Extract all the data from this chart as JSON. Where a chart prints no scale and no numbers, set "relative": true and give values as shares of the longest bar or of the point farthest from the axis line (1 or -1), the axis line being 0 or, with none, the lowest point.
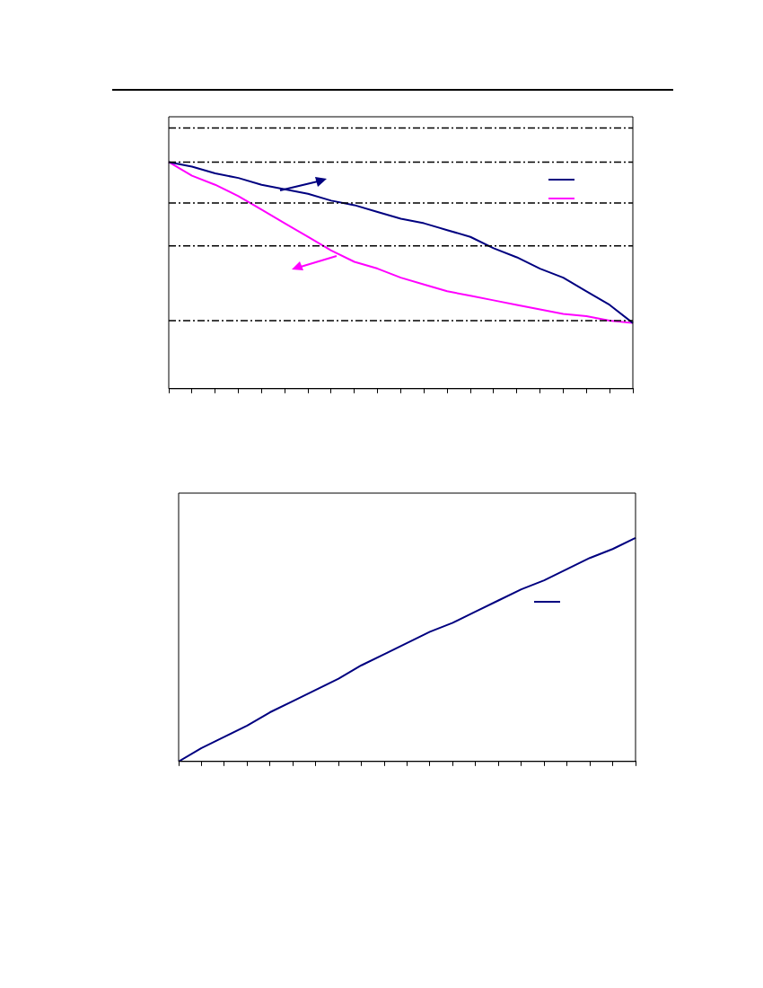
{
  "chart_data": [
    {
      "type": "line",
      "relative": true,
      "line_style": "solid",
      "marker": "none",
      "categories": [
        null,
        null,
        null,
        null,
        null,
        null,
        null,
        null,
        null,
        null,
        null,
        null,
        null,
        null,
        null,
        null,
        null,
        null,
        null,
        null,
        null
      ],
      "series": [
        {
          "color": "#000080",
          "values": [
            1.0,
            0.98,
            0.95,
            0.93,
            0.9,
            0.88,
            0.86,
            0.83,
            0.81,
            0.78,
            0.75,
            0.73,
            0.7,
            0.67,
            0.62,
            0.58,
            0.53,
            0.49,
            0.43,
            0.37,
            0.29
          ]
        },
        {
          "color": "#ff00ff",
          "values": [
            1.0,
            0.94,
            0.9,
            0.85,
            0.79,
            0.73,
            0.67,
            0.61,
            0.56,
            0.53,
            0.49,
            0.46,
            0.43,
            0.41,
            0.39,
            0.37,
            0.35,
            0.33,
            0.32,
            0.3,
            0.29
          ]
        }
      ],
      "ref_lines": [
        {
          "axis": "y",
          "value": 1.15,
          "color": "#000000",
          "line_style": "dashed"
        },
        {
          "axis": "y",
          "value": 1.0,
          "color": "#000000",
          "line_style": "dashed"
        },
        {
          "axis": "y",
          "value": 0.82,
          "color": "#000000",
          "line_style": "dashed"
        },
        {
          "axis": "y",
          "value": 0.63,
          "color": "#000000",
          "line_style": "dashed"
        },
        {
          "axis": "y",
          "value": 0.3,
          "color": "#000000",
          "line_style": "dashed"
        }
      ]
    },
    {
      "type": "line",
      "relative": true,
      "line_style": "solid",
      "marker": "none",
      "categories": [
        null,
        null,
        null,
        null,
        null,
        null,
        null,
        null,
        null,
        null,
        null,
        null,
        null,
        null,
        null,
        null,
        null,
        null,
        null,
        null,
        null
      ],
      "series": [
        {
          "color": "#000080",
          "values": [
            0,
            0.06,
            0.11,
            0.16,
            0.22,
            0.27,
            0.32,
            0.37,
            0.43,
            0.48,
            0.53,
            0.58,
            0.62,
            0.67,
            0.72,
            0.77,
            0.81,
            0.86,
            0.91,
            0.95,
            1.0
          ]
        }
      ]
    }
  ]
}
